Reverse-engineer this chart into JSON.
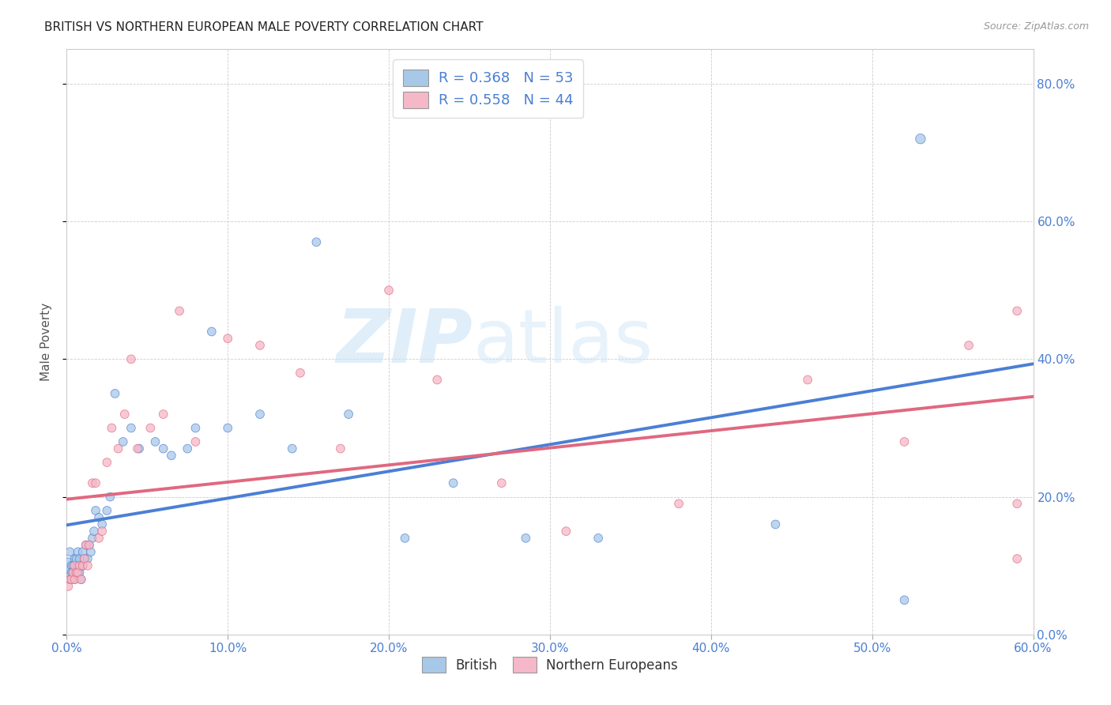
{
  "title": "BRITISH VS NORTHERN EUROPEAN MALE POVERTY CORRELATION CHART",
  "source": "Source: ZipAtlas.com",
  "xlim": [
    0.0,
    0.6
  ],
  "ylim": [
    0.0,
    0.85
  ],
  "ylabel": "Male Poverty",
  "watermark_zip": "ZIP",
  "watermark_atlas": "atlas",
  "british_color": "#a8c8e8",
  "northern_color": "#f5b8c8",
  "british_line_color": "#4a7fd4",
  "northern_line_color": "#e06880",
  "legend_british_label": "R = 0.368   N = 53",
  "legend_northern_label": "R = 0.558   N = 44",
  "bottom_legend_british": "British",
  "bottom_legend_northern": "Northern Europeans",
  "grid_color": "#cccccc",
  "background_color": "#ffffff",
  "tick_color": "#4a7fd4",
  "british_x": [
    0.001,
    0.002,
    0.002,
    0.003,
    0.003,
    0.004,
    0.004,
    0.005,
    0.005,
    0.006,
    0.006,
    0.007,
    0.007,
    0.008,
    0.008,
    0.009,
    0.009,
    0.01,
    0.01,
    0.011,
    0.012,
    0.013,
    0.014,
    0.015,
    0.016,
    0.017,
    0.018,
    0.02,
    0.022,
    0.025,
    0.027,
    0.03,
    0.035,
    0.04,
    0.045,
    0.055,
    0.06,
    0.065,
    0.075,
    0.08,
    0.09,
    0.1,
    0.12,
    0.14,
    0.155,
    0.175,
    0.21,
    0.24,
    0.285,
    0.33,
    0.44,
    0.52,
    0.53
  ],
  "british_y": [
    0.1,
    0.12,
    0.08,
    0.1,
    0.09,
    0.09,
    0.1,
    0.08,
    0.11,
    0.09,
    0.11,
    0.1,
    0.12,
    0.09,
    0.11,
    0.1,
    0.08,
    0.1,
    0.12,
    0.11,
    0.13,
    0.11,
    0.13,
    0.12,
    0.14,
    0.15,
    0.18,
    0.17,
    0.16,
    0.18,
    0.2,
    0.35,
    0.28,
    0.3,
    0.27,
    0.28,
    0.27,
    0.26,
    0.27,
    0.3,
    0.44,
    0.3,
    0.32,
    0.27,
    0.57,
    0.32,
    0.14,
    0.22,
    0.14,
    0.14,
    0.16,
    0.05,
    0.72
  ],
  "northern_x": [
    0.001,
    0.002,
    0.003,
    0.004,
    0.005,
    0.005,
    0.006,
    0.007,
    0.008,
    0.009,
    0.01,
    0.011,
    0.012,
    0.013,
    0.014,
    0.016,
    0.018,
    0.02,
    0.022,
    0.025,
    0.028,
    0.032,
    0.036,
    0.04,
    0.044,
    0.052,
    0.06,
    0.07,
    0.08,
    0.1,
    0.12,
    0.145,
    0.17,
    0.2,
    0.23,
    0.27,
    0.31,
    0.38,
    0.46,
    0.52,
    0.56,
    0.59,
    0.59,
    0.59
  ],
  "northern_y": [
    0.07,
    0.08,
    0.08,
    0.09,
    0.08,
    0.1,
    0.09,
    0.09,
    0.1,
    0.08,
    0.1,
    0.11,
    0.13,
    0.1,
    0.13,
    0.22,
    0.22,
    0.14,
    0.15,
    0.25,
    0.3,
    0.27,
    0.32,
    0.4,
    0.27,
    0.3,
    0.32,
    0.47,
    0.28,
    0.43,
    0.42,
    0.38,
    0.27,
    0.5,
    0.37,
    0.22,
    0.15,
    0.19,
    0.37,
    0.28,
    0.42,
    0.11,
    0.19,
    0.47
  ],
  "british_sizes": [
    200,
    60,
    60,
    60,
    60,
    60,
    60,
    60,
    60,
    60,
    60,
    60,
    60,
    60,
    60,
    60,
    60,
    60,
    60,
    60,
    60,
    60,
    60,
    60,
    60,
    60,
    60,
    60,
    60,
    60,
    60,
    60,
    60,
    60,
    60,
    60,
    60,
    60,
    60,
    60,
    60,
    60,
    60,
    60,
    60,
    60,
    60,
    60,
    60,
    60,
    60,
    60,
    80
  ],
  "northern_sizes": [
    60,
    60,
    60,
    60,
    60,
    60,
    60,
    60,
    60,
    60,
    60,
    60,
    60,
    60,
    60,
    60,
    60,
    60,
    60,
    60,
    60,
    60,
    60,
    60,
    60,
    60,
    60,
    60,
    60,
    60,
    60,
    60,
    60,
    60,
    60,
    60,
    60,
    60,
    60,
    60,
    60,
    60,
    60,
    60
  ]
}
